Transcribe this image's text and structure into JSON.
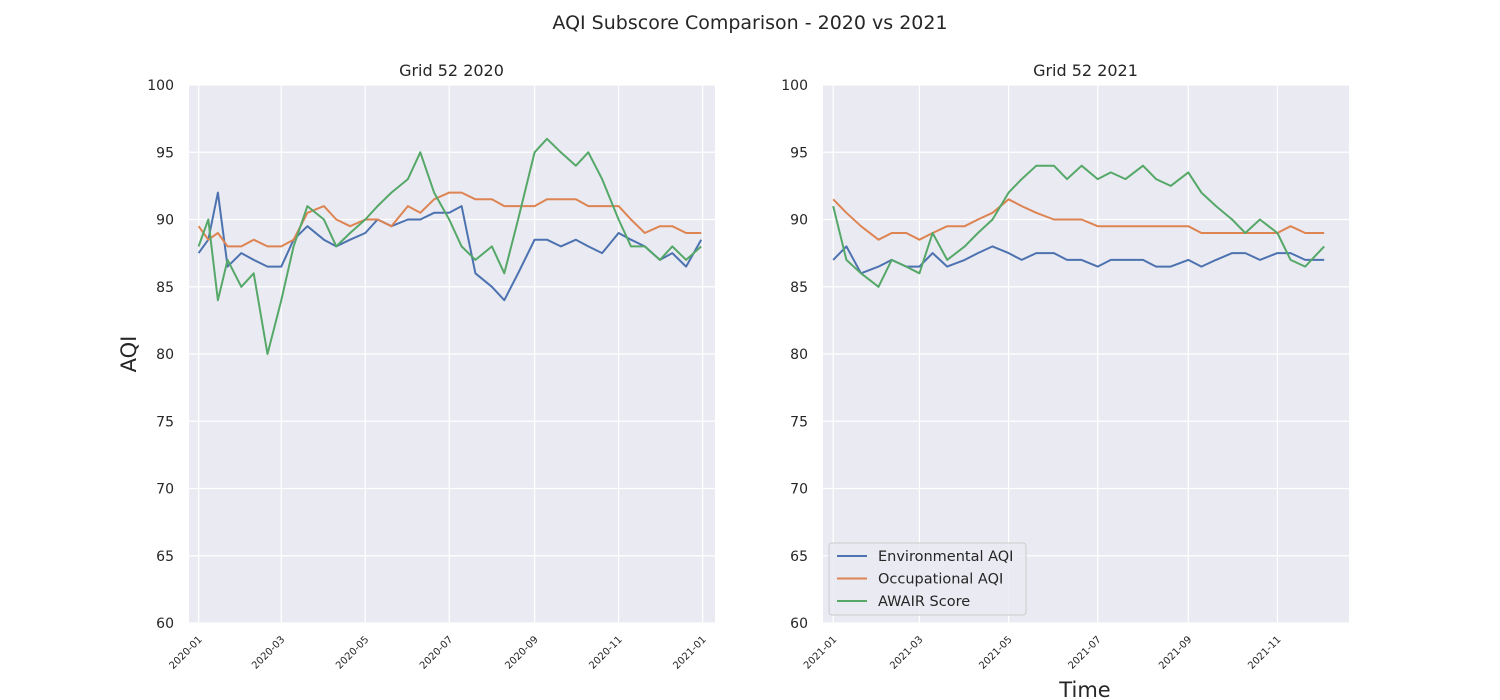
{
  "figure": {
    "title": "AQI Subscore Comparison - 2020 vs 2021",
    "ylabel": "AQI",
    "xlabel": "Time"
  },
  "colors": {
    "env": "#4c72b0",
    "occ": "#dd8452",
    "awair": "#55a868",
    "plot_bg": "#eaeaf2",
    "grid": "#ffffff"
  },
  "legend": {
    "location": "lower-left of right panel",
    "items": [
      {
        "label": "Environmental AQI",
        "color": "#4c72b0"
      },
      {
        "label": "Occupational AQI",
        "color": "#dd8452"
      },
      {
        "label": "AWAIR Score",
        "color": "#55a868"
      }
    ]
  },
  "chart_data": [
    {
      "type": "line",
      "title": "Grid 52 2020",
      "ylabel": "AQI",
      "xlabel": "",
      "ylim": [
        60,
        100
      ],
      "xlim": [
        "2019-12-25",
        "2021-01-10"
      ],
      "yticks": [
        "60",
        "65",
        "70",
        "75",
        "80",
        "85",
        "90",
        "95",
        "100"
      ],
      "xticks": [
        {
          "date": "2020-01-01",
          "label": "2020-01"
        },
        {
          "date": "2020-03-01",
          "label": "2020-03"
        },
        {
          "date": "2020-05-01",
          "label": "2020-05"
        },
        {
          "date": "2020-07-01",
          "label": "2020-07"
        },
        {
          "date": "2020-09-01",
          "label": "2020-09"
        },
        {
          "date": "2020-11-01",
          "label": "2020-11"
        },
        {
          "date": "2021-01-01",
          "label": "2021-01"
        }
      ],
      "grid": true,
      "series": [
        {
          "name": "Environmental AQI",
          "x": [
            "2020-01-01",
            "2020-01-08",
            "2020-01-15",
            "2020-01-22",
            "2020-02-01",
            "2020-02-10",
            "2020-02-20",
            "2020-03-01",
            "2020-03-10",
            "2020-03-20",
            "2020-04-01",
            "2020-04-10",
            "2020-04-20",
            "2020-05-01",
            "2020-05-10",
            "2020-05-20",
            "2020-06-01",
            "2020-06-10",
            "2020-06-20",
            "2020-07-01",
            "2020-07-10",
            "2020-07-20",
            "2020-08-01",
            "2020-08-10",
            "2020-08-20",
            "2020-09-01",
            "2020-09-10",
            "2020-09-20",
            "2020-10-01",
            "2020-10-10",
            "2020-10-20",
            "2020-11-01",
            "2020-11-10",
            "2020-11-20",
            "2020-12-01",
            "2020-12-10",
            "2020-12-20",
            "2020-12-31"
          ],
          "y": [
            87.5,
            88.5,
            92.0,
            86.5,
            87.5,
            87.0,
            86.5,
            86.5,
            88.5,
            89.5,
            88.5,
            88.0,
            88.5,
            89.0,
            90.0,
            89.5,
            90.0,
            90.0,
            90.5,
            90.5,
            91.0,
            86.0,
            85.0,
            84.0,
            86.0,
            88.5,
            88.5,
            88.0,
            88.5,
            88.0,
            87.5,
            89.0,
            88.5,
            88.0,
            87.0,
            87.5,
            86.5,
            88.5
          ]
        },
        {
          "name": "Occupational AQI",
          "x": [
            "2020-01-01",
            "2020-01-08",
            "2020-01-15",
            "2020-01-22",
            "2020-02-01",
            "2020-02-10",
            "2020-02-20",
            "2020-03-01",
            "2020-03-10",
            "2020-03-20",
            "2020-04-01",
            "2020-04-10",
            "2020-04-20",
            "2020-05-01",
            "2020-05-10",
            "2020-05-20",
            "2020-06-01",
            "2020-06-10",
            "2020-06-20",
            "2020-07-01",
            "2020-07-10",
            "2020-07-20",
            "2020-08-01",
            "2020-08-10",
            "2020-08-20",
            "2020-09-01",
            "2020-09-10",
            "2020-09-20",
            "2020-10-01",
            "2020-10-10",
            "2020-10-20",
            "2020-11-01",
            "2020-11-10",
            "2020-11-20",
            "2020-12-01",
            "2020-12-10",
            "2020-12-20",
            "2020-12-31"
          ],
          "y": [
            89.5,
            88.5,
            89.0,
            88.0,
            88.0,
            88.5,
            88.0,
            88.0,
            88.5,
            90.5,
            91.0,
            90.0,
            89.5,
            90.0,
            90.0,
            89.5,
            91.0,
            90.5,
            91.5,
            92.0,
            92.0,
            91.5,
            91.5,
            91.0,
            91.0,
            91.0,
            91.5,
            91.5,
            91.5,
            91.0,
            91.0,
            91.0,
            90.0,
            89.0,
            89.5,
            89.5,
            89.0,
            89.0
          ]
        },
        {
          "name": "AWAIR Score",
          "x": [
            "2020-01-01",
            "2020-01-08",
            "2020-01-15",
            "2020-01-22",
            "2020-02-01",
            "2020-02-10",
            "2020-02-20",
            "2020-03-01",
            "2020-03-10",
            "2020-03-20",
            "2020-04-01",
            "2020-04-10",
            "2020-04-20",
            "2020-05-01",
            "2020-05-10",
            "2020-05-20",
            "2020-06-01",
            "2020-06-10",
            "2020-06-20",
            "2020-07-01",
            "2020-07-10",
            "2020-07-20",
            "2020-08-01",
            "2020-08-10",
            "2020-08-20",
            "2020-09-01",
            "2020-09-10",
            "2020-09-20",
            "2020-10-01",
            "2020-10-10",
            "2020-10-20",
            "2020-11-01",
            "2020-11-10",
            "2020-11-20",
            "2020-12-01",
            "2020-12-10",
            "2020-12-20",
            "2020-12-31"
          ],
          "y": [
            88.0,
            90.0,
            84.0,
            87.0,
            85.0,
            86.0,
            80.0,
            84.0,
            88.0,
            91.0,
            90.0,
            88.0,
            89.0,
            90.0,
            91.0,
            92.0,
            93.0,
            95.0,
            92.0,
            90.0,
            88.0,
            87.0,
            88.0,
            86.0,
            90.0,
            95.0,
            96.0,
            95.0,
            94.0,
            95.0,
            93.0,
            90.0,
            88.0,
            88.0,
            87.0,
            88.0,
            87.0,
            88.0
          ]
        }
      ]
    },
    {
      "type": "line",
      "title": "Grid 52 2021",
      "ylabel": "",
      "xlabel": "Time",
      "ylim": [
        60,
        100
      ],
      "xlim": [
        "2020-12-25",
        "2021-12-20"
      ],
      "yticks": [
        "60",
        "65",
        "70",
        "75",
        "80",
        "85",
        "90",
        "95",
        "100"
      ],
      "xticks": [
        {
          "date": "2021-01-01",
          "label": "2021-01"
        },
        {
          "date": "2021-03-01",
          "label": "2021-03"
        },
        {
          "date": "2021-05-01",
          "label": "2021-05"
        },
        {
          "date": "2021-07-01",
          "label": "2021-07"
        },
        {
          "date": "2021-09-01",
          "label": "2021-09"
        },
        {
          "date": "2021-11-01",
          "label": "2021-11"
        }
      ],
      "grid": true,
      "series": [
        {
          "name": "Environmental AQI",
          "x": [
            "2021-01-01",
            "2021-01-10",
            "2021-01-20",
            "2021-02-01",
            "2021-02-10",
            "2021-02-20",
            "2021-03-01",
            "2021-03-10",
            "2021-03-20",
            "2021-04-01",
            "2021-04-10",
            "2021-04-20",
            "2021-05-01",
            "2021-05-10",
            "2021-05-20",
            "2021-06-01",
            "2021-06-10",
            "2021-06-20",
            "2021-07-01",
            "2021-07-10",
            "2021-07-20",
            "2021-08-01",
            "2021-08-10",
            "2021-08-20",
            "2021-09-01",
            "2021-09-10",
            "2021-09-20",
            "2021-10-01",
            "2021-10-10",
            "2021-10-20",
            "2021-11-01",
            "2021-11-10",
            "2021-11-20",
            "2021-12-03"
          ],
          "y": [
            87.0,
            88.0,
            86.0,
            86.5,
            87.0,
            86.5,
            86.5,
            87.5,
            86.5,
            87.0,
            87.5,
            88.0,
            87.5,
            87.0,
            87.5,
            87.5,
            87.0,
            87.0,
            86.5,
            87.0,
            87.0,
            87.0,
            86.5,
            86.5,
            87.0,
            86.5,
            87.0,
            87.5,
            87.5,
            87.0,
            87.5,
            87.5,
            87.0,
            87.0
          ]
        },
        {
          "name": "Occupational AQI",
          "x": [
            "2021-01-01",
            "2021-01-10",
            "2021-01-20",
            "2021-02-01",
            "2021-02-10",
            "2021-02-20",
            "2021-03-01",
            "2021-03-10",
            "2021-03-20",
            "2021-04-01",
            "2021-04-10",
            "2021-04-20",
            "2021-05-01",
            "2021-05-10",
            "2021-05-20",
            "2021-06-01",
            "2021-06-10",
            "2021-06-20",
            "2021-07-01",
            "2021-07-10",
            "2021-07-20",
            "2021-08-01",
            "2021-08-10",
            "2021-08-20",
            "2021-09-01",
            "2021-09-10",
            "2021-09-20",
            "2021-10-01",
            "2021-10-10",
            "2021-10-20",
            "2021-11-01",
            "2021-11-10",
            "2021-11-20",
            "2021-12-03"
          ],
          "y": [
            91.5,
            90.5,
            89.5,
            88.5,
            89.0,
            89.0,
            88.5,
            89.0,
            89.5,
            89.5,
            90.0,
            90.5,
            91.5,
            91.0,
            90.5,
            90.0,
            90.0,
            90.0,
            89.5,
            89.5,
            89.5,
            89.5,
            89.5,
            89.5,
            89.5,
            89.0,
            89.0,
            89.0,
            89.0,
            89.0,
            89.0,
            89.5,
            89.0,
            89.0
          ]
        },
        {
          "name": "AWAIR Score",
          "x": [
            "2021-01-01",
            "2021-01-10",
            "2021-01-20",
            "2021-02-01",
            "2021-02-10",
            "2021-02-20",
            "2021-03-01",
            "2021-03-10",
            "2021-03-20",
            "2021-04-01",
            "2021-04-10",
            "2021-04-20",
            "2021-05-01",
            "2021-05-10",
            "2021-05-20",
            "2021-06-01",
            "2021-06-10",
            "2021-06-20",
            "2021-07-01",
            "2021-07-10",
            "2021-07-20",
            "2021-08-01",
            "2021-08-10",
            "2021-08-20",
            "2021-09-01",
            "2021-09-10",
            "2021-09-20",
            "2021-10-01",
            "2021-10-10",
            "2021-10-20",
            "2021-11-01",
            "2021-11-10",
            "2021-11-20",
            "2021-12-03"
          ],
          "y": [
            91.0,
            87.0,
            86.0,
            85.0,
            87.0,
            86.5,
            86.0,
            89.0,
            87.0,
            88.0,
            89.0,
            90.0,
            92.0,
            93.0,
            94.0,
            94.0,
            93.0,
            94.0,
            93.0,
            93.5,
            93.0,
            94.0,
            93.0,
            92.5,
            93.5,
            92.0,
            91.0,
            90.0,
            89.0,
            90.0,
            89.0,
            87.0,
            86.5,
            88.0
          ]
        }
      ]
    }
  ]
}
